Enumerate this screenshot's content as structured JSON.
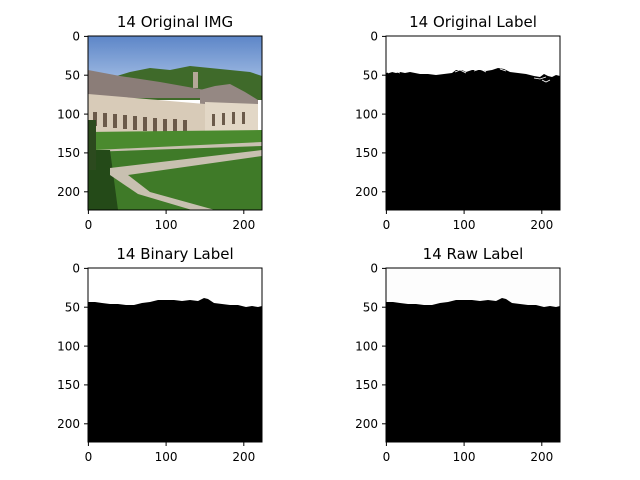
{
  "figure": {
    "panels": [
      {
        "id": "original-img",
        "title": "14 Original IMG",
        "kind": "photo",
        "photo_description": "abbey building with grass courtyard and trees under blue sky",
        "x_ticks": [
          "0",
          "100",
          "200"
        ],
        "y_ticks": [
          "0",
          "50",
          "100",
          "150",
          "200"
        ],
        "colors": {
          "sky": "#8aaee0",
          "sky_top": "#5d86c8",
          "trees": "#3f6a2a",
          "roof": "#8b7d78",
          "wall": "#d8cbb8",
          "window": "#6b5a4a",
          "grass_bright": "#4a8a2e",
          "grass_dark": "#2c5a1e",
          "path": "#c8c0b0"
        }
      },
      {
        "id": "original-label",
        "title": "14 Original Label",
        "kind": "mask",
        "x_ticks": [
          "0",
          "100",
          "200"
        ],
        "y_ticks": [
          "0",
          "50",
          "100",
          "150",
          "200"
        ],
        "colors": {
          "foreground": "#000000",
          "background": "#ffffff"
        }
      },
      {
        "id": "binary-label",
        "title": "14 Binary Label",
        "kind": "mask",
        "x_ticks": [
          "0",
          "100",
          "200"
        ],
        "y_ticks": [
          "0",
          "50",
          "100",
          "150",
          "200"
        ],
        "colors": {
          "foreground": "#000000",
          "background": "#ffffff"
        }
      },
      {
        "id": "raw-label",
        "title": "14 Raw Label",
        "kind": "mask",
        "x_ticks": [
          "0",
          "100",
          "200"
        ],
        "y_ticks": [
          "0",
          "50",
          "100",
          "150",
          "200"
        ],
        "colors": {
          "foreground": "#000000",
          "background": "#fdfdfd"
        }
      }
    ]
  }
}
